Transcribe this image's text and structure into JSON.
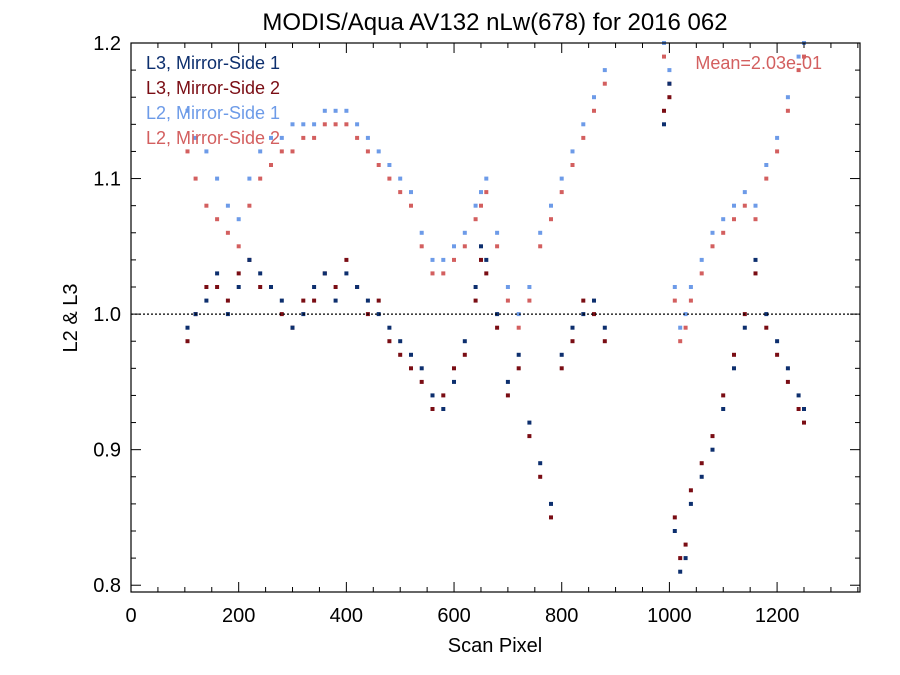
{
  "chart_data": {
    "type": "scatter",
    "title": "MODIS/Aqua AV132 nLw(678) for 2016 062",
    "xlabel": "Scan Pixel",
    "ylabel": "L2 & L3",
    "xlim": [
      0,
      1354
    ],
    "ylim": [
      0.795,
      1.2
    ],
    "xticks": [
      0,
      200,
      400,
      600,
      800,
      1000,
      1200
    ],
    "yticks": [
      0.8,
      0.9,
      1.0,
      1.1,
      1.2
    ],
    "xtick_labels": [
      "0",
      "200",
      "400",
      "600",
      "800",
      "1000",
      "1200"
    ],
    "ytick_labels": [
      "0.8",
      "0.9",
      "1.0",
      "1.1",
      "1.2"
    ],
    "reference_line": 1.0,
    "legend_position": "top-left",
    "annotation": "Mean=2.03e-01",
    "series": [
      {
        "name": "L3, Mirror-Side 1",
        "color": "#0d2f6e",
        "x": [
          105,
          120,
          140,
          160,
          180,
          200,
          220,
          240,
          260,
          280,
          300,
          320,
          340,
          360,
          380,
          400,
          420,
          440,
          460,
          480,
          500,
          520,
          540,
          560,
          580,
          600,
          620,
          640,
          650,
          660,
          680,
          700,
          720,
          740,
          760,
          780,
          800,
          820,
          840,
          860,
          880,
          990,
          1000,
          1010,
          1020,
          1030,
          1040,
          1060,
          1080,
          1100,
          1120,
          1140,
          1160,
          1180,
          1200,
          1220,
          1240,
          1250
        ],
        "y": [
          0.99,
          1.0,
          1.01,
          1.03,
          1.0,
          1.02,
          1.04,
          1.03,
          1.02,
          1.01,
          0.99,
          1.0,
          1.02,
          1.03,
          1.01,
          1.03,
          1.02,
          1.01,
          1.0,
          0.99,
          0.98,
          0.97,
          0.96,
          0.94,
          0.93,
          0.95,
          0.98,
          1.02,
          1.05,
          1.04,
          1.0,
          0.95,
          0.97,
          0.92,
          0.89,
          0.86,
          0.97,
          0.99,
          1.0,
          1.01,
          0.99,
          1.14,
          1.17,
          0.84,
          0.81,
          0.82,
          0.86,
          0.88,
          0.9,
          0.93,
          0.96,
          0.99,
          1.04,
          1.0,
          0.98,
          0.96,
          0.94,
          0.93
        ]
      },
      {
        "name": "L3, Mirror-Side 2",
        "color": "#7a0d14",
        "x": [
          105,
          120,
          140,
          160,
          180,
          200,
          220,
          240,
          260,
          280,
          300,
          320,
          340,
          360,
          380,
          400,
          420,
          440,
          460,
          480,
          500,
          520,
          540,
          560,
          580,
          600,
          620,
          640,
          650,
          660,
          680,
          700,
          720,
          740,
          760,
          780,
          800,
          820,
          840,
          860,
          880,
          990,
          1000,
          1010,
          1020,
          1030,
          1040,
          1060,
          1080,
          1100,
          1120,
          1140,
          1160,
          1180,
          1200,
          1220,
          1240,
          1250
        ],
        "y": [
          0.98,
          1.0,
          1.02,
          1.02,
          1.01,
          1.03,
          1.04,
          1.02,
          1.02,
          1.0,
          0.99,
          1.01,
          1.01,
          1.03,
          1.02,
          1.04,
          1.02,
          1.0,
          1.01,
          0.98,
          0.97,
          0.96,
          0.95,
          0.93,
          0.94,
          0.96,
          0.97,
          1.01,
          1.04,
          1.03,
          0.99,
          0.94,
          0.96,
          0.91,
          0.88,
          0.85,
          0.96,
          0.98,
          1.01,
          1.0,
          0.98,
          1.15,
          1.16,
          0.85,
          0.82,
          0.83,
          0.87,
          0.89,
          0.91,
          0.94,
          0.97,
          1.0,
          1.03,
          0.99,
          0.97,
          0.95,
          0.93,
          0.92
        ]
      },
      {
        "name": "L2, Mirror-Side 1",
        "color": "#6d9be8",
        "x": [
          105,
          120,
          140,
          160,
          180,
          200,
          220,
          240,
          260,
          280,
          300,
          320,
          340,
          360,
          380,
          400,
          420,
          440,
          460,
          480,
          500,
          520,
          540,
          560,
          580,
          600,
          620,
          640,
          650,
          660,
          680,
          700,
          720,
          740,
          760,
          780,
          800,
          820,
          840,
          860,
          880,
          990,
          1000,
          1010,
          1020,
          1030,
          1040,
          1060,
          1080,
          1100,
          1120,
          1140,
          1160,
          1180,
          1200,
          1220,
          1240,
          1250
        ],
        "y": [
          1.15,
          1.13,
          1.12,
          1.1,
          1.08,
          1.07,
          1.1,
          1.12,
          1.13,
          1.13,
          1.14,
          1.14,
          1.14,
          1.15,
          1.15,
          1.15,
          1.14,
          1.13,
          1.12,
          1.11,
          1.1,
          1.09,
          1.06,
          1.04,
          1.04,
          1.05,
          1.06,
          1.08,
          1.09,
          1.1,
          1.06,
          1.02,
          1.0,
          1.02,
          1.06,
          1.08,
          1.1,
          1.12,
          1.14,
          1.16,
          1.18,
          1.2,
          1.18,
          1.02,
          0.99,
          1.0,
          1.02,
          1.04,
          1.06,
          1.07,
          1.08,
          1.09,
          1.08,
          1.11,
          1.13,
          1.16,
          1.19,
          1.2
        ]
      },
      {
        "name": "L2, Mirror-Side 2",
        "color": "#d35f5f",
        "x": [
          105,
          120,
          140,
          160,
          180,
          200,
          220,
          240,
          260,
          280,
          300,
          320,
          340,
          360,
          380,
          400,
          420,
          440,
          460,
          480,
          500,
          520,
          540,
          560,
          580,
          600,
          620,
          640,
          650,
          660,
          680,
          700,
          720,
          740,
          760,
          780,
          800,
          820,
          840,
          860,
          880,
          990,
          1000,
          1010,
          1020,
          1030,
          1040,
          1060,
          1080,
          1100,
          1120,
          1140,
          1160,
          1180,
          1200,
          1220,
          1240,
          1250
        ],
        "y": [
          1.12,
          1.1,
          1.08,
          1.07,
          1.06,
          1.05,
          1.08,
          1.1,
          1.11,
          1.12,
          1.12,
          1.13,
          1.13,
          1.14,
          1.14,
          1.14,
          1.13,
          1.12,
          1.11,
          1.1,
          1.09,
          1.08,
          1.05,
          1.03,
          1.03,
          1.04,
          1.05,
          1.07,
          1.08,
          1.09,
          1.05,
          1.01,
          0.99,
          1.01,
          1.05,
          1.07,
          1.09,
          1.11,
          1.13,
          1.15,
          1.17,
          1.19,
          1.17,
          1.01,
          0.98,
          0.99,
          1.01,
          1.03,
          1.05,
          1.06,
          1.07,
          1.08,
          1.07,
          1.1,
          1.12,
          1.15,
          1.18,
          1.19
        ]
      }
    ]
  }
}
